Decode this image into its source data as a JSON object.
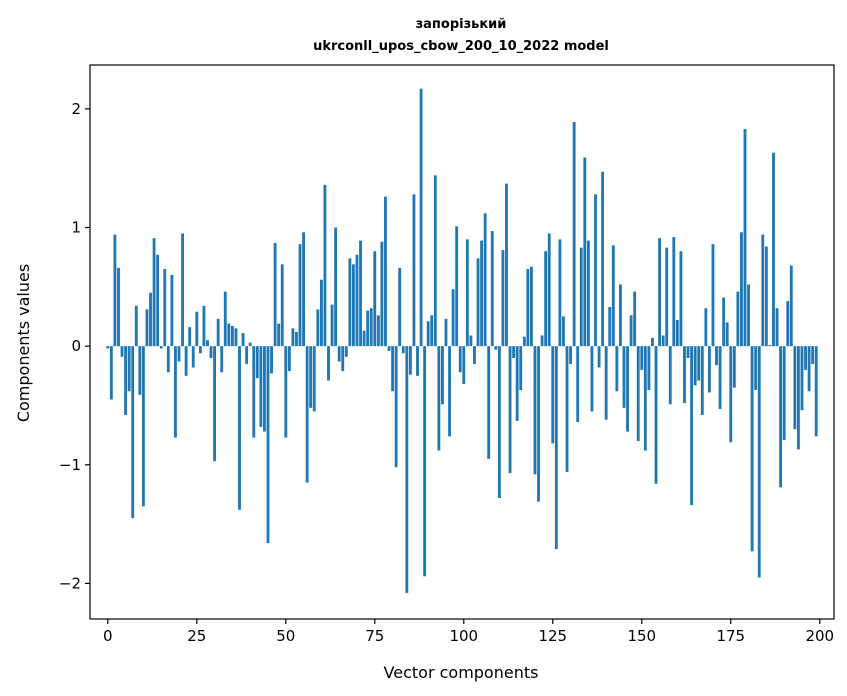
{
  "chart_data": {
    "type": "bar",
    "title": "запорізький",
    "subtitle": "ukrconll_upos_cbow_200_10_2022 model",
    "xlabel": "Vector components",
    "ylabel": "Components values",
    "xlim": [
      -5,
      204
    ],
    "ylim": [
      -2.3,
      2.37
    ],
    "xticks": [
      0,
      25,
      50,
      75,
      100,
      125,
      150,
      175,
      200
    ],
    "xtick_labels": [
      "0",
      "25",
      "50",
      "75",
      "100",
      "125",
      "150",
      "175",
      "200"
    ],
    "yticks": [
      -2,
      -1,
      0,
      1,
      2
    ],
    "ytick_labels": [
      "−2",
      "−1",
      "0",
      "1",
      "2"
    ],
    "bar_color": "#1f77b4",
    "grid": false,
    "legend": "none",
    "x": [
      0,
      1,
      2,
      3,
      4,
      5,
      6,
      7,
      8,
      9,
      10,
      11,
      12,
      13,
      14,
      15,
      16,
      17,
      18,
      19,
      20,
      21,
      22,
      23,
      24,
      25,
      26,
      27,
      28,
      29,
      30,
      31,
      32,
      33,
      34,
      35,
      36,
      37,
      38,
      39,
      40,
      41,
      42,
      43,
      44,
      45,
      46,
      47,
      48,
      49,
      50,
      51,
      52,
      53,
      54,
      55,
      56,
      57,
      58,
      59,
      60,
      61,
      62,
      63,
      64,
      65,
      66,
      67,
      68,
      69,
      70,
      71,
      72,
      73,
      74,
      75,
      76,
      77,
      78,
      79,
      80,
      81,
      82,
      83,
      84,
      85,
      86,
      87,
      88,
      89,
      90,
      91,
      92,
      93,
      94,
      95,
      96,
      97,
      98,
      99,
      100,
      101,
      102,
      103,
      104,
      105,
      106,
      107,
      108,
      109,
      110,
      111,
      112,
      113,
      114,
      115,
      116,
      117,
      118,
      119,
      120,
      121,
      122,
      123,
      124,
      125,
      126,
      127,
      128,
      129,
      130,
      131,
      132,
      133,
      134,
      135,
      136,
      137,
      138,
      139,
      140,
      141,
      142,
      143,
      144,
      145,
      146,
      147,
      148,
      149,
      150,
      151,
      152,
      153,
      154,
      155,
      156,
      157,
      158,
      159,
      160,
      161,
      162,
      163,
      164,
      165,
      166,
      167,
      168,
      169,
      170,
      171,
      172,
      173,
      174,
      175,
      176,
      177,
      178,
      179,
      180,
      181,
      182,
      183,
      184,
      185,
      186,
      187,
      188,
      189,
      190,
      191,
      192,
      193,
      194,
      195,
      196,
      197,
      198,
      199
    ],
    "values": [
      -0.02,
      -0.45,
      0.94,
      0.66,
      -0.09,
      -0.58,
      -0.38,
      -1.45,
      0.34,
      -0.41,
      -1.35,
      0.31,
      0.45,
      0.91,
      0.77,
      -0.02,
      0.65,
      -0.22,
      0.6,
      -0.77,
      -0.13,
      0.95,
      -0.25,
      0.16,
      -0.18,
      0.29,
      -0.06,
      0.34,
      0.05,
      -0.1,
      -0.97,
      0.23,
      -0.22,
      0.46,
      0.19,
      0.17,
      0.15,
      -1.38,
      0.11,
      -0.15,
      0.03,
      -0.77,
      -0.27,
      -0.68,
      -0.72,
      -1.66,
      -0.23,
      0.87,
      0.19,
      0.69,
      -0.77,
      -0.21,
      0.15,
      0.12,
      0.86,
      0.96,
      -1.15,
      -0.52,
      -0.55,
      0.31,
      0.56,
      1.36,
      -0.29,
      0.35,
      1.0,
      -0.13,
      -0.21,
      -0.09,
      0.74,
      0.69,
      0.77,
      0.89,
      0.13,
      0.3,
      0.32,
      0.8,
      0.26,
      0.88,
      1.26,
      -0.04,
      -0.38,
      -1.02,
      0.66,
      -0.06,
      -2.08,
      -0.24,
      1.28,
      -0.25,
      2.17,
      -1.94,
      0.21,
      0.26,
      1.44,
      -0.88,
      -0.49,
      0.23,
      -0.76,
      0.48,
      1.01,
      -0.22,
      -0.32,
      0.9,
      0.09,
      -0.15,
      0.74,
      0.89,
      1.12,
      -0.95,
      0.97,
      -0.03,
      -1.28,
      0.81,
      1.37,
      -1.07,
      -0.1,
      -0.63,
      -0.37,
      0.08,
      0.65,
      0.67,
      -1.08,
      -1.31,
      0.09,
      0.8,
      0.95,
      -0.82,
      -1.71,
      0.9,
      0.25,
      -1.06,
      -0.15,
      1.89,
      -0.64,
      0.83,
      1.59,
      0.89,
      -0.55,
      1.28,
      -0.18,
      1.47,
      -0.62,
      0.33,
      0.85,
      -0.38,
      0.52,
      -0.52,
      -0.72,
      0.26,
      0.46,
      -0.8,
      -0.2,
      -0.88,
      -0.37,
      0.07,
      -1.16,
      0.91,
      0.09,
      0.83,
      -0.49,
      0.92,
      0.22,
      0.8,
      -0.48,
      -0.1,
      -1.34,
      -0.33,
      -0.29,
      -0.58,
      0.32,
      -0.39,
      0.86,
      -0.16,
      -0.53,
      0.41,
      0.2,
      -0.81,
      -0.35,
      0.46,
      0.96,
      1.83,
      0.52,
      -1.73,
      -0.37,
      -1.95,
      0.94,
      0.84,
      0.01,
      1.63,
      0.32,
      -1.19,
      -0.79,
      0.38,
      0.68,
      -0.7,
      -0.87,
      -0.54,
      -0.2,
      -0.38,
      -0.15,
      -0.76
    ]
  }
}
